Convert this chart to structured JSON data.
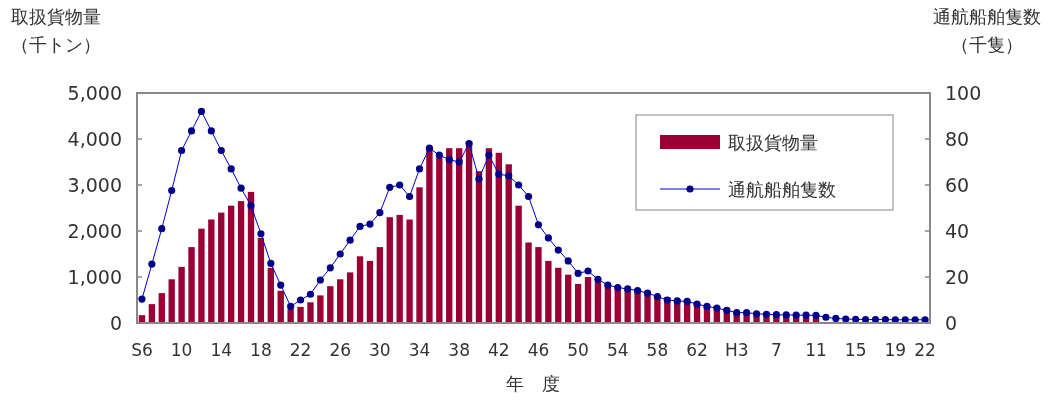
{
  "chart_data": {
    "type": "bar",
    "categories": [
      "S6",
      null,
      null,
      null,
      "10",
      null,
      null,
      null,
      "14",
      null,
      null,
      null,
      "18",
      null,
      null,
      null,
      "22",
      null,
      null,
      null,
      "26",
      null,
      null,
      null,
      "30",
      null,
      null,
      null,
      "34",
      null,
      null,
      null,
      "38",
      null,
      null,
      null,
      "42",
      null,
      null,
      null,
      "46",
      null,
      null,
      null,
      "50",
      null,
      null,
      null,
      "54",
      null,
      null,
      null,
      "58",
      null,
      null,
      null,
      "62",
      null,
      null,
      null,
      "H3",
      null,
      null,
      null,
      "7",
      null,
      null,
      null,
      "11",
      null,
      null,
      null,
      "15",
      null,
      null,
      null,
      "19",
      null,
      null,
      "22"
    ],
    "series": [
      {
        "name": "取扱貨物量",
        "color": "#990033",
        "values": [
          170,
          410,
          650,
          950,
          1220,
          1650,
          2050,
          2250,
          2400,
          2550,
          2650,
          2850,
          1850,
          1200,
          700,
          300,
          350,
          450,
          600,
          800,
          950,
          1100,
          1450,
          1350,
          1650,
          2300,
          2350,
          2250,
          2950,
          3800,
          3600,
          3800,
          3800,
          3950,
          3300,
          3800,
          3700,
          3450,
          2550,
          1750,
          1650,
          1350,
          1200,
          1050,
          850,
          1000,
          900,
          820,
          760,
          720,
          680,
          640,
          600,
          560,
          520,
          480,
          440,
          400,
          360,
          330,
          220,
          200,
          180,
          160,
          150,
          140,
          130,
          120,
          110,
          null,
          null,
          null,
          null,
          null,
          null,
          null,
          null,
          null,
          null,
          null
        ]
      },
      {
        "name": "通航船舶隻数",
        "type": "line",
        "axis": "y2",
        "color": "#0000cc",
        "marker": "circle",
        "values": [
          10.4,
          25.6,
          41,
          57.6,
          75,
          83.5,
          92,
          83.5,
          75,
          67,
          58.6,
          51,
          38.8,
          25.9,
          16.5,
          7.2,
          10,
          12.5,
          18.7,
          24,
          30,
          36,
          42,
          43,
          48,
          59,
          60,
          55,
          67,
          76,
          73,
          71,
          70,
          78,
          62.6,
          73,
          64.7,
          64,
          60,
          55,
          42.7,
          37,
          31.7,
          27,
          21.6,
          22.6,
          19,
          16.5,
          15.4,
          14.8,
          14.1,
          13,
          11.5,
          10,
          9.6,
          9.4,
          8.2,
          7.2,
          6.5,
          5.5,
          4.5,
          4.5,
          4,
          3.8,
          3.6,
          3.5,
          3.4,
          3.4,
          3.3,
          2.5,
          2,
          1.7,
          1.6,
          1.5,
          1.5,
          1.5,
          1.4,
          1.4,
          1.4,
          1.4
        ]
      }
    ],
    "ylabel": "取扱貨物量（千トン）",
    "y2label": "通航船舶隻数（千隻）",
    "xlabel": "年　度",
    "ylim": [
      0,
      5000
    ],
    "yticks": [
      0,
      {
        "value": 1000,
        "label": "1,000"
      },
      {
        "value": 2000,
        "label": "2,000"
      },
      {
        "value": 3000,
        "label": "3,000"
      },
      {
        "value": 4000,
        "label": "4,000"
      },
      {
        "value": 5000,
        "label": "5,000"
      }
    ],
    "y2lim": [
      0,
      100
    ],
    "y2ticks": [
      0,
      20,
      40,
      60,
      80,
      100
    ],
    "legend": "top right"
  }
}
